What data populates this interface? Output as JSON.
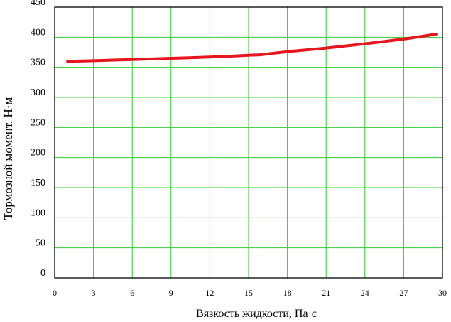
{
  "chart_data": {
    "type": "line",
    "title": "",
    "xlabel": "Вязкость жидкости, Па·с",
    "ylabel": "Тормозной момент, Н·м",
    "xlim": [
      0,
      30
    ],
    "ylim": [
      0,
      450
    ],
    "x_ticks": [
      {
        "value": 0,
        "label": "0"
      },
      {
        "value": 3,
        "label": "3"
      },
      {
        "value": 6,
        "label": "6"
      },
      {
        "value": 9,
        "label": "9"
      },
      {
        "value": 12,
        "label": "12"
      },
      {
        "value": 15,
        "label": "15"
      },
      {
        "value": 18,
        "label": "18"
      },
      {
        "value": 21,
        "label": "21"
      },
      {
        "value": 24,
        "label": "24"
      },
      {
        "value": 27,
        "label": "27"
      },
      {
        "value": 30,
        "label": "30"
      }
    ],
    "y_ticks": [
      {
        "value": 0,
        "label": "0"
      },
      {
        "value": 50,
        "label": "50"
      },
      {
        "value": 100,
        "label": "100"
      },
      {
        "value": 150,
        "label": "150"
      },
      {
        "value": 200,
        "label": "200"
      },
      {
        "value": 250,
        "label": "250"
      },
      {
        "value": 300,
        "label": "300"
      },
      {
        "value": 350,
        "label": "350"
      },
      {
        "value": 400,
        "label": "400"
      },
      {
        "value": 450,
        "label": "450"
      }
    ],
    "grid": true,
    "legend": "none",
    "series": [
      {
        "color": "#e8141e",
        "x": [
          1,
          3,
          6,
          9,
          12,
          15,
          16,
          18,
          21,
          24,
          27,
          29.5
        ],
        "y": [
          360,
          361,
          363,
          365,
          367,
          370,
          371,
          376,
          382,
          389,
          397,
          405
        ]
      }
    ],
    "colors": {
      "grid": "#2ecc2e",
      "axis": "#000000",
      "line": "#e8141e"
    }
  }
}
